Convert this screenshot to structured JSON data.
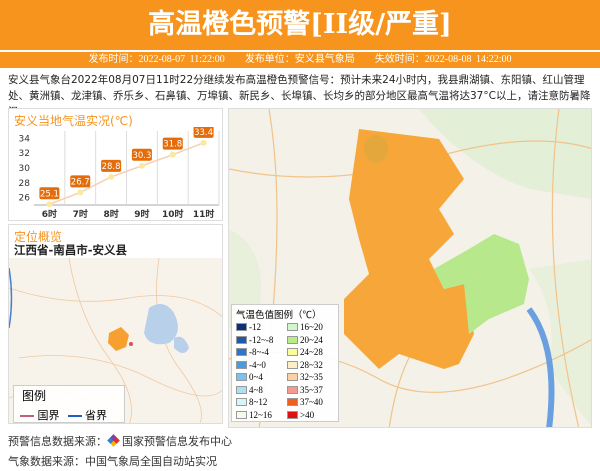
{
  "header": {
    "title": "高温橙色预警[II级/严重]",
    "color": "#f7941d"
  },
  "subbar": {
    "issue_time": "发布时间：2022-08-07 11:22:00",
    "issuer": "发布单位：安义县气象局",
    "expire_time": "失效时间：2022-08-08 14:22:00"
  },
  "description": "安义县气象台2022年08月07日11时22分继续发布高温橙色预警信号：预计未来24小时内，我县鼎湖镇、东阳镇、红山管理处、黄洲镇、龙津镇、乔乐乡、石鼻镇、万埠镇、新民乡、长埠镇、长均乡的部分地区最高气温将达37°C以上，请注意防暑降温。",
  "chart_data": {
    "type": "line",
    "title": "安义当地气温实况(℃)",
    "categories": [
      "6时",
      "7时",
      "8时",
      "9时",
      "10时",
      "11时"
    ],
    "values": [
      25.1,
      26.7,
      28.8,
      30.3,
      31.8,
      33.4
    ],
    "yticks": [
      26,
      28,
      30,
      32,
      34
    ],
    "ylim": [
      25,
      35
    ],
    "grid": "vertical",
    "line_color": "#f5d0b0",
    "label_color": "#e46c0a"
  },
  "location": {
    "title": "定位概览",
    "path": "江西省-南昌市-安义县",
    "legend_title": "图例",
    "legend_items": [
      {
        "label": "国界",
        "color": "#c0607a"
      },
      {
        "label": "省界",
        "color": "#1f5fc8"
      }
    ]
  },
  "temp_legend": {
    "title": "气温色值图例（℃）",
    "items": [
      {
        "label": "-12",
        "color": "#0d2f7a"
      },
      {
        "label": "-12~-8",
        "color": "#1f5aa8"
      },
      {
        "label": "-8~-4",
        "color": "#2d74cc"
      },
      {
        "label": "-4~0",
        "color": "#4a9ae0"
      },
      {
        "label": "0~4",
        "color": "#7cc2f0"
      },
      {
        "label": "4~8",
        "color": "#aee0f4"
      },
      {
        "label": "8~12",
        "color": "#d8f4f8"
      },
      {
        "label": "12~16",
        "color": "#f2fbec"
      },
      {
        "label": "16~20",
        "color": "#d2f5cc"
      },
      {
        "label": "20~24",
        "color": "#b8ee84"
      },
      {
        "label": "24~28",
        "color": "#fbfb9a"
      },
      {
        "label": "28~32",
        "color": "#fdeec8"
      },
      {
        "label": "32~35",
        "color": "#fcd0a4"
      },
      {
        "label": "35~37",
        "color": "#f59a8c"
      },
      {
        "label": "37~40",
        "color": "#f06020"
      },
      {
        "label": ">40",
        "color": "#e01010"
      }
    ]
  },
  "footer": {
    "warning_source": "预警信息数据来源：",
    "warning_center": "国家预警信息发布中心",
    "weather_source": "气象数据来源：中国气象局全国自动站实况"
  }
}
